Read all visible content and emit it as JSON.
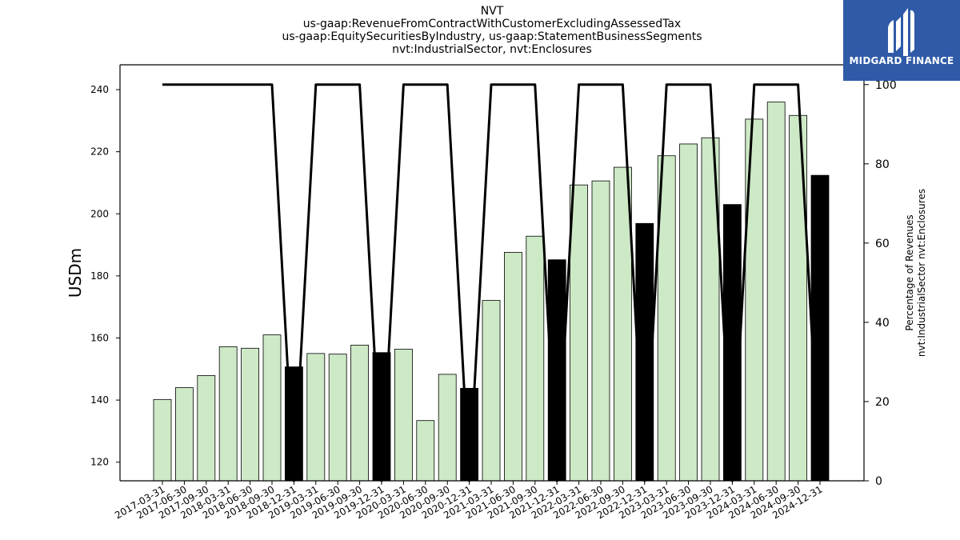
{
  "title_lines": [
    "NVT",
    "us-gaap:RevenueFromContractWithCustomerExcludingAssessedTax",
    "us-gaap:EquitySecuritiesByIndustry, us-gaap:StatementBusinessSegments",
    "nvt:IndustrialSector, nvt:Enclosures"
  ],
  "logo": {
    "text": "MIDGARD FINANCE",
    "background": "#2f5aa8",
    "icon": "midgard-m-icon"
  },
  "colors": {
    "bar_normal": "#cde9c6",
    "bar_highlight": "#000000",
    "line": "#000000",
    "bar_edge": "#000000"
  },
  "chart_data": {
    "type": "bar",
    "categories": [
      "2017-03-31",
      "2017-06-30",
      "2017-09-30",
      "2018-03-31",
      "2018-06-30",
      "2018-09-30",
      "2018-12-31",
      "2019-03-31",
      "2019-06-30",
      "2019-09-30",
      "2019-12-31",
      "2020-03-31",
      "2020-06-30",
      "2020-09-30",
      "2020-12-31",
      "2021-03-31",
      "2021-06-30",
      "2021-09-30",
      "2021-12-31",
      "2022-03-31",
      "2022-06-30",
      "2022-09-30",
      "2022-12-31",
      "2023-03-31",
      "2023-06-30",
      "2023-09-30",
      "2023-12-31",
      "2024-03-31",
      "2024-06-30",
      "2024-09-30",
      "2024-12-31"
    ],
    "series": [
      {
        "axis": "left",
        "values": [
          140.2,
          144.0,
          147.9,
          157.2,
          156.7,
          161.0,
          150.7,
          155.0,
          154.8,
          157.7,
          155.3,
          156.4,
          133.4,
          148.3,
          143.8,
          172.1,
          187.6,
          192.8,
          185.2,
          209.3,
          210.6,
          215.0,
          196.9,
          218.7,
          222.5,
          224.5,
          203.0,
          230.5,
          236.0,
          231.7,
          212.4
        ],
        "highlighted": [
          false,
          false,
          false,
          false,
          false,
          false,
          true,
          false,
          false,
          false,
          true,
          false,
          false,
          false,
          true,
          false,
          false,
          false,
          true,
          false,
          false,
          false,
          true,
          false,
          false,
          false,
          true,
          false,
          false,
          false,
          true
        ]
      },
      {
        "type": "line",
        "axis": "right",
        "values": [
          100,
          100,
          100,
          100,
          100,
          100,
          0,
          100,
          100,
          100,
          0,
          100,
          100,
          100,
          0,
          100,
          100,
          100,
          0,
          100,
          100,
          100,
          0,
          100,
          100,
          100,
          0,
          100,
          100,
          100,
          0
        ]
      }
    ],
    "ylabel": "USDm",
    "ylabel_right": [
      "Percentage of Revenues",
      "nvt:IndustrialSector nvt:Enclosures"
    ],
    "ylim": [
      114,
      248
    ],
    "yticks": [
      120,
      140,
      160,
      180,
      200,
      220,
      240
    ],
    "ylim_right": [
      0,
      105
    ],
    "yticks_right": [
      0,
      20,
      40,
      60,
      80,
      100
    ],
    "grid": false
  }
}
